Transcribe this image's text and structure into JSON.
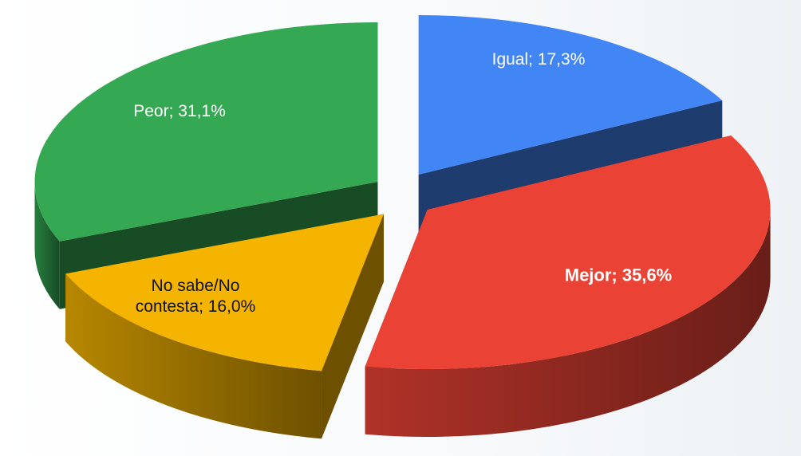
{
  "chart_data": {
    "type": "pie",
    "values": [
      17.3,
      35.6,
      16.0,
      31.1
    ],
    "value_labels": [
      "Igual; 17,3%",
      "Mejor; 35,6%",
      "No sabe/No contesta; 16,0%",
      "Peor; 31,1%"
    ],
    "colors": [
      "#4285f4",
      "#ea4335",
      "#f4b400",
      "#34a853"
    ],
    "exploded": true
  }
}
